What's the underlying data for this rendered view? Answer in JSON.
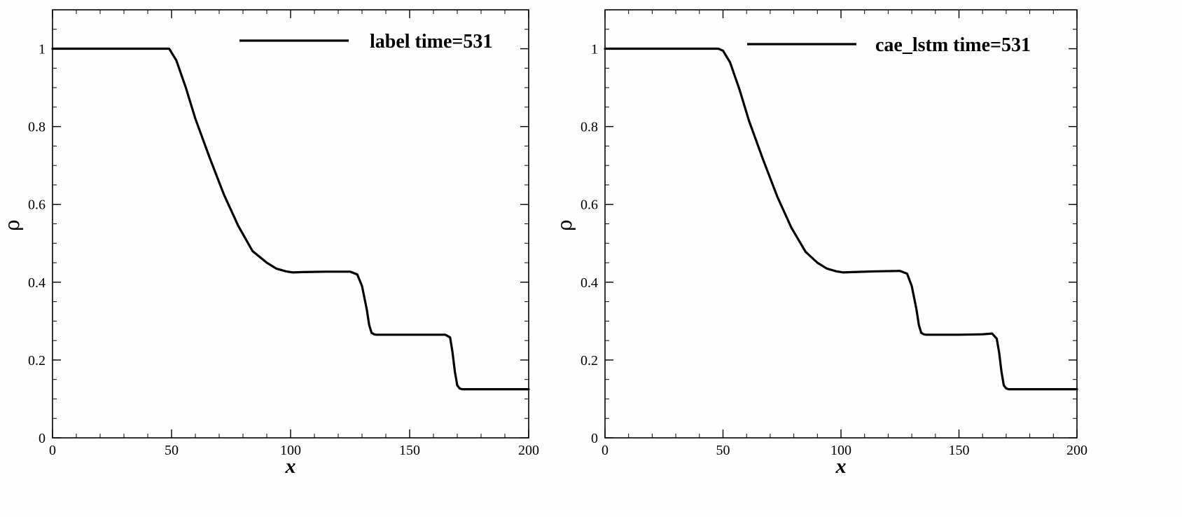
{
  "chart_data": [
    {
      "type": "line",
      "xlabel": "x",
      "ylabel": "ρ",
      "xlim": [
        0,
        200
      ],
      "ylim": [
        0,
        1.1
      ],
      "xticks": [
        0,
        50,
        100,
        150,
        200
      ],
      "yticks": [
        0,
        0.2,
        0.4,
        0.6,
        0.8,
        1
      ],
      "xtick_labels": [
        "0",
        "50",
        "100",
        "150",
        "200"
      ],
      "ytick_labels": [
        "0",
        "0.2",
        "0.4",
        "0.6",
        "0.8",
        "1"
      ],
      "grid": false,
      "legend_position": "top-right",
      "series": [
        {
          "name": "label time=531",
          "color": "#000000",
          "x": [
            0,
            20,
            40,
            47,
            49,
            52,
            56,
            60,
            66,
            72,
            78,
            84,
            90,
            94,
            98,
            101,
            105,
            115,
            125,
            128,
            130,
            132,
            133,
            134,
            135,
            136,
            140,
            150,
            160,
            165,
            167,
            168,
            169,
            170,
            171,
            172,
            180,
            190,
            200
          ],
          "y": [
            1,
            1,
            1,
            1,
            1,
            0.97,
            0.9,
            0.82,
            0.72,
            0.625,
            0.545,
            0.48,
            0.45,
            0.435,
            0.428,
            0.425,
            0.426,
            0.427,
            0.427,
            0.42,
            0.39,
            0.33,
            0.29,
            0.27,
            0.266,
            0.265,
            0.265,
            0.265,
            0.265,
            0.265,
            0.258,
            0.22,
            0.17,
            0.135,
            0.127,
            0.125,
            0.125,
            0.125,
            0.125
          ]
        }
      ]
    },
    {
      "type": "line",
      "xlabel": "x",
      "ylabel": "ρ",
      "xlim": [
        0,
        200
      ],
      "ylim": [
        0,
        1.1
      ],
      "xticks": [
        0,
        50,
        100,
        150,
        200
      ],
      "yticks": [
        0,
        0.2,
        0.4,
        0.6,
        0.8,
        1
      ],
      "xtick_labels": [
        "0",
        "50",
        "100",
        "150",
        "200"
      ],
      "ytick_labels": [
        "0",
        "0.2",
        "0.4",
        "0.6",
        "0.8",
        "1"
      ],
      "grid": false,
      "legend_position": "top-right",
      "series": [
        {
          "name": "cae_lstm time=531",
          "color": "#000000",
          "x": [
            0,
            20,
            40,
            48,
            50,
            53,
            57,
            61,
            67,
            73,
            79,
            85,
            90,
            94,
            98,
            101,
            105,
            115,
            125,
            128,
            130,
            132,
            133,
            134,
            135,
            136,
            140,
            150,
            160,
            164,
            166,
            167,
            168,
            169,
            170,
            171,
            180,
            190,
            200
          ],
          "y": [
            1,
            1,
            1,
            1,
            0.995,
            0.965,
            0.895,
            0.815,
            0.715,
            0.62,
            0.54,
            0.478,
            0.45,
            0.435,
            0.428,
            0.425,
            0.426,
            0.428,
            0.429,
            0.422,
            0.39,
            0.33,
            0.29,
            0.27,
            0.266,
            0.265,
            0.265,
            0.265,
            0.266,
            0.268,
            0.255,
            0.22,
            0.17,
            0.135,
            0.127,
            0.125,
            0.125,
            0.125,
            0.125
          ]
        }
      ]
    }
  ]
}
